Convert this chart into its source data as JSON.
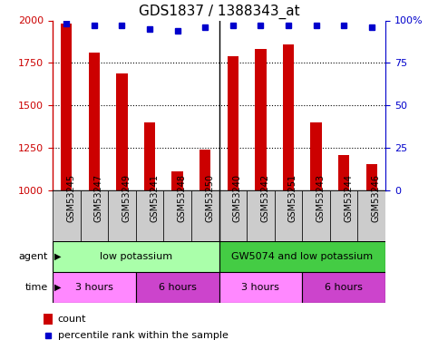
{
  "title": "GDS1837 / 1388343_at",
  "samples": [
    "GSM53245",
    "GSM53247",
    "GSM53249",
    "GSM53241",
    "GSM53248",
    "GSM53250",
    "GSM53240",
    "GSM53242",
    "GSM53251",
    "GSM53243",
    "GSM53244",
    "GSM53246"
  ],
  "counts": [
    1980,
    1810,
    1690,
    1400,
    1110,
    1240,
    1790,
    1830,
    1860,
    1400,
    1210,
    1155
  ],
  "percentiles": [
    98,
    97,
    97,
    95,
    94,
    96,
    97,
    97,
    97,
    97,
    97,
    96
  ],
  "ylim_left": [
    1000,
    2000
  ],
  "ylim_right": [
    0,
    100
  ],
  "yticks_left": [
    1000,
    1250,
    1500,
    1750,
    2000
  ],
  "yticks_right": [
    0,
    25,
    50,
    75,
    100
  ],
  "bar_color": "#cc0000",
  "dot_color": "#0000cc",
  "agent_groups": [
    {
      "label": "low potassium",
      "start": 0,
      "end": 6,
      "color": "#aaffaa"
    },
    {
      "label": "GW5074 and low potassium",
      "start": 6,
      "end": 12,
      "color": "#44cc44"
    }
  ],
  "time_groups": [
    {
      "label": "3 hours",
      "start": 0,
      "end": 3,
      "color": "#ff88ff"
    },
    {
      "label": "6 hours",
      "start": 3,
      "end": 6,
      "color": "#cc44cc"
    },
    {
      "label": "3 hours",
      "start": 6,
      "end": 9,
      "color": "#ff88ff"
    },
    {
      "label": "6 hours",
      "start": 9,
      "end": 12,
      "color": "#cc44cc"
    }
  ],
  "legend_count_label": "count",
  "legend_pct_label": "percentile rank within the sample",
  "agent_label": "agent",
  "time_label": "time",
  "sample_bg_color": "#cccccc",
  "title_fontsize": 11,
  "axis_label_color_left": "#cc0000",
  "axis_label_color_right": "#0000cc",
  "bar_width": 0.4,
  "group_divider": 5.5,
  "n_samples": 12,
  "grid_ticks": [
    1250,
    1500,
    1750
  ]
}
